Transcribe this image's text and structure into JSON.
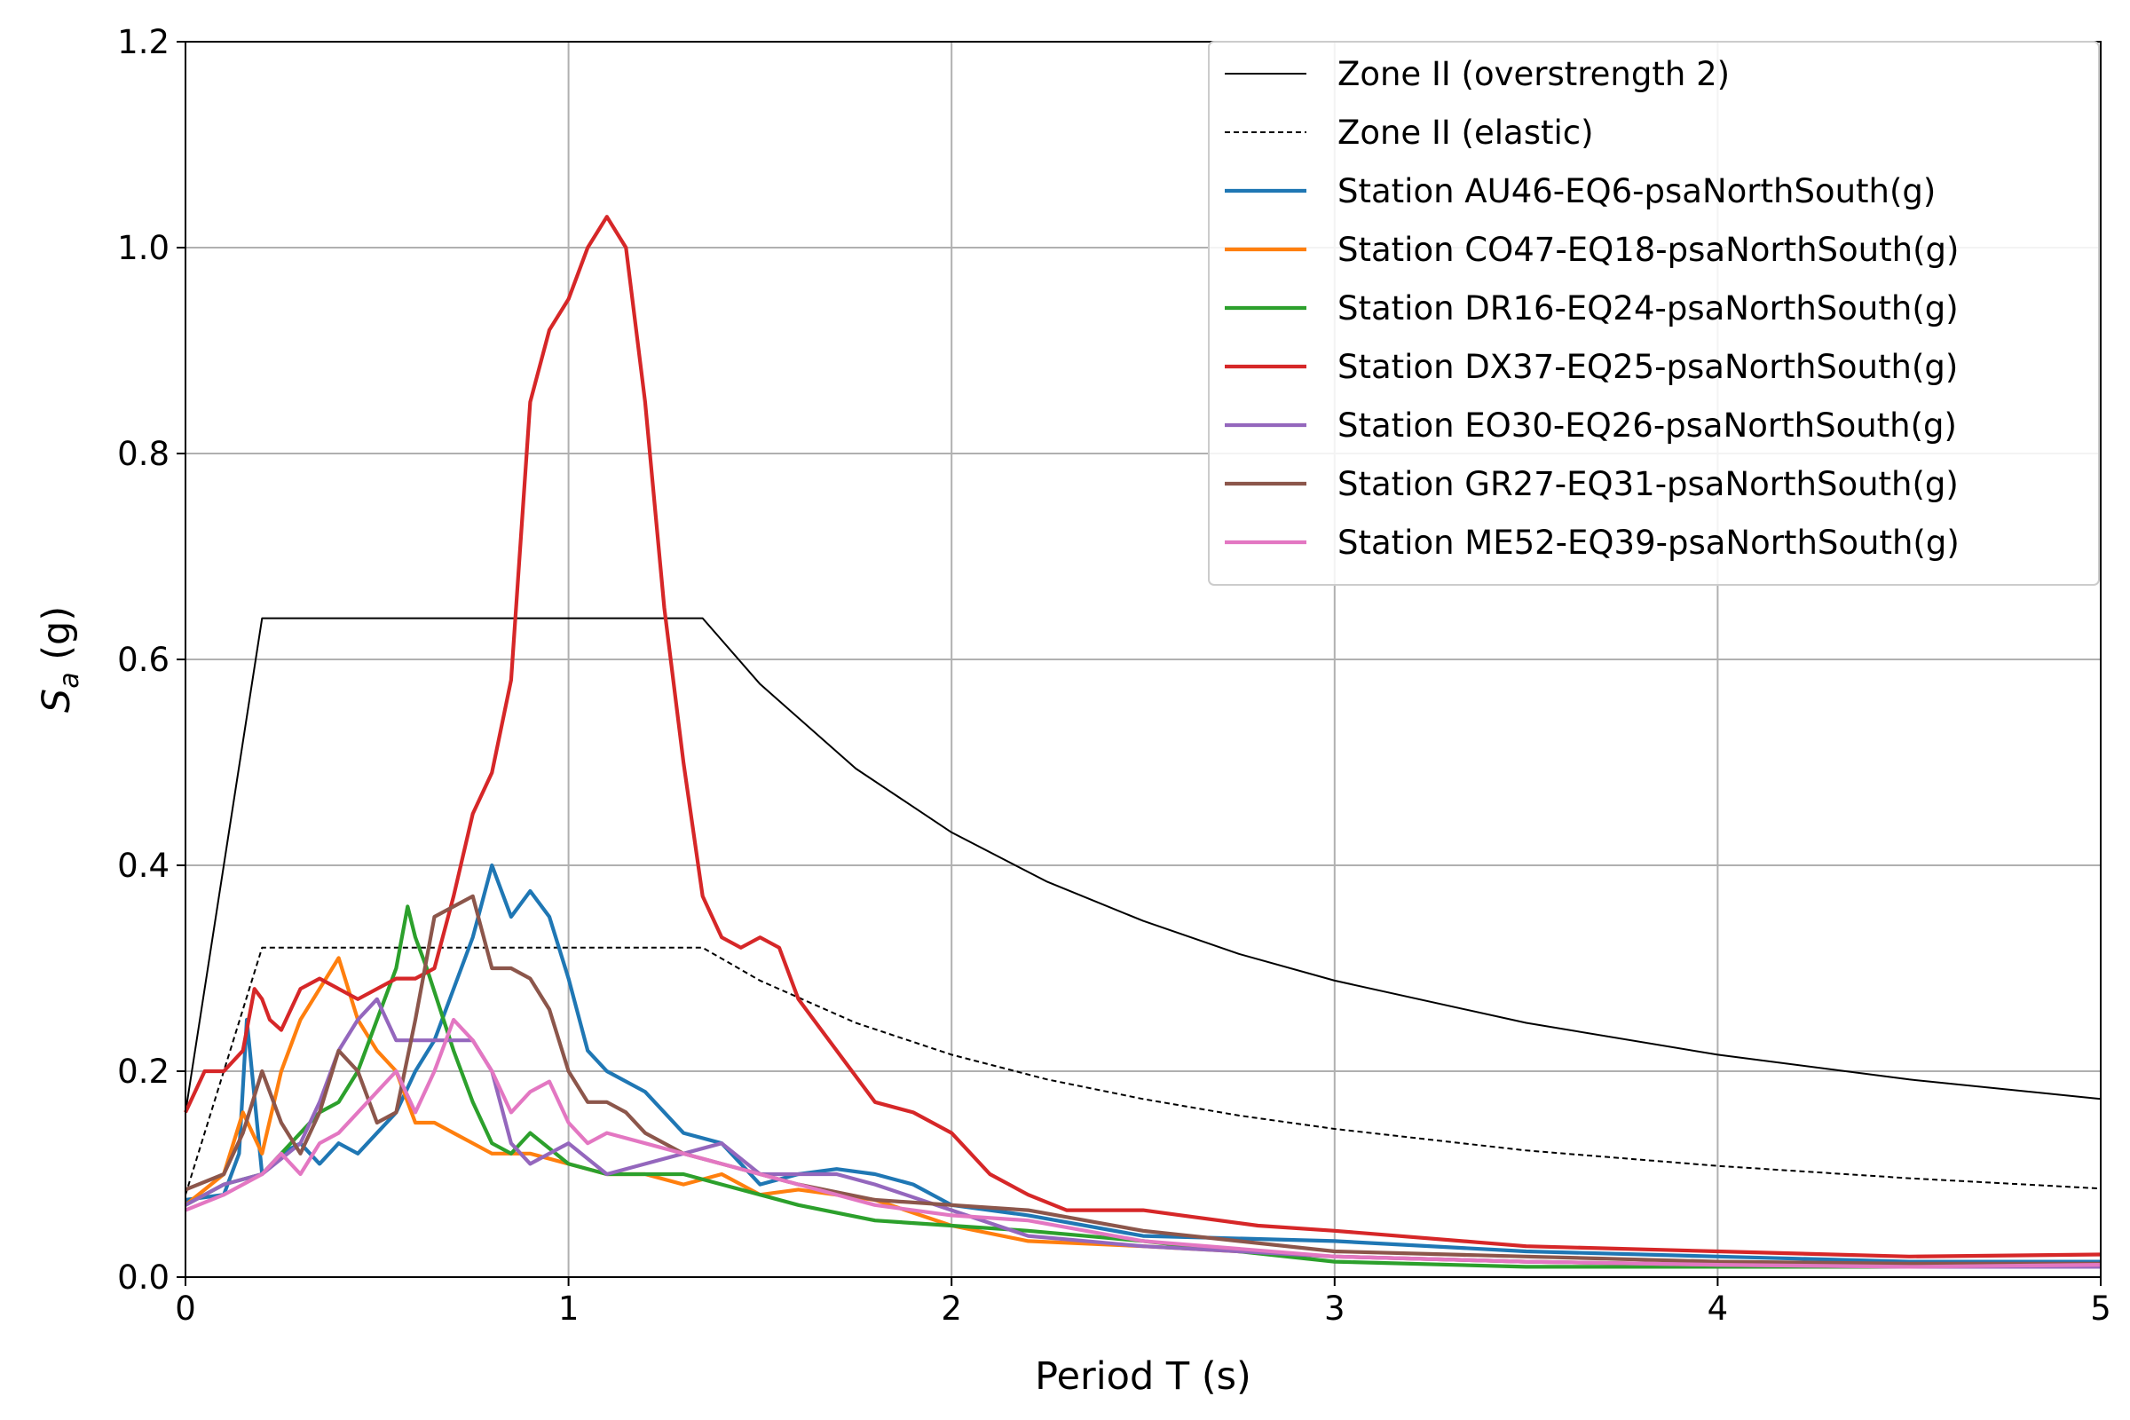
{
  "chart_data": {
    "type": "line",
    "xlabel": "Period T (s)",
    "ylabel": "S",
    "ylabel_subscript": "a",
    "ylabel_unit": " (g)",
    "xlim": [
      0,
      5
    ],
    "ylim": [
      0,
      1.2
    ],
    "x_ticks": [
      0,
      1,
      2,
      3,
      4,
      5
    ],
    "x_tick_labels": [
      "0",
      "1",
      "2",
      "3",
      "4",
      "5"
    ],
    "y_ticks": [
      0,
      0.2,
      0.4,
      0.6,
      0.8,
      1.0,
      1.2
    ],
    "y_tick_labels": [
      "0.0",
      "0.2",
      "0.4",
      "0.6",
      "0.8",
      "1.0",
      "1.2"
    ],
    "grid": true,
    "legend_position": "top-right",
    "series": [
      {
        "name": "Zone II (overstrength 2)",
        "color": "#000000",
        "style": "solid",
        "width": "thin",
        "x": [
          0,
          0.2,
          1.35,
          1.5,
          1.75,
          2.0,
          2.25,
          2.5,
          2.75,
          3.0,
          3.5,
          4.0,
          4.5,
          5.0
        ],
        "y": [
          0.16,
          0.64,
          0.64,
          0.576,
          0.494,
          0.432,
          0.384,
          0.346,
          0.314,
          0.288,
          0.247,
          0.216,
          0.192,
          0.173
        ]
      },
      {
        "name": "Zone II (elastic)",
        "color": "#000000",
        "style": "dashed",
        "width": "thin",
        "x": [
          0,
          0.2,
          1.35,
          1.5,
          1.75,
          2.0,
          2.25,
          2.5,
          2.75,
          3.0,
          3.5,
          4.0,
          4.5,
          5.0
        ],
        "y": [
          0.08,
          0.32,
          0.32,
          0.288,
          0.247,
          0.216,
          0.192,
          0.173,
          0.157,
          0.144,
          0.123,
          0.108,
          0.096,
          0.086
        ]
      },
      {
        "name": "Station AU46-EQ6-psaNorthSouth(g)",
        "color": "#1f77b4",
        "style": "solid",
        "width": "thick",
        "x": [
          0,
          0.1,
          0.14,
          0.16,
          0.2,
          0.25,
          0.3,
          0.35,
          0.4,
          0.45,
          0.5,
          0.55,
          0.6,
          0.65,
          0.7,
          0.75,
          0.8,
          0.85,
          0.9,
          0.95,
          1.0,
          1.05,
          1.1,
          1.2,
          1.3,
          1.4,
          1.5,
          1.6,
          1.7,
          1.8,
          1.9,
          2.0,
          2.2,
          2.5,
          3.0,
          3.5,
          4.0,
          4.5,
          5.0
        ],
        "y": [
          0.075,
          0.08,
          0.12,
          0.25,
          0.1,
          0.12,
          0.13,
          0.11,
          0.13,
          0.12,
          0.14,
          0.16,
          0.2,
          0.23,
          0.28,
          0.33,
          0.4,
          0.35,
          0.375,
          0.35,
          0.29,
          0.22,
          0.2,
          0.18,
          0.14,
          0.13,
          0.09,
          0.1,
          0.105,
          0.1,
          0.09,
          0.07,
          0.06,
          0.04,
          0.035,
          0.025,
          0.02,
          0.015,
          0.015
        ]
      },
      {
        "name": "Station CO47-EQ18-psaNorthSouth(g)",
        "color": "#ff7f0e",
        "style": "solid",
        "width": "thick",
        "x": [
          0,
          0.1,
          0.15,
          0.2,
          0.25,
          0.3,
          0.35,
          0.4,
          0.45,
          0.5,
          0.55,
          0.6,
          0.65,
          0.7,
          0.75,
          0.8,
          0.9,
          1.0,
          1.1,
          1.2,
          1.3,
          1.4,
          1.5,
          1.6,
          1.8,
          2.0,
          2.2,
          2.5,
          3.0,
          3.5,
          4.0,
          4.5,
          5.0
        ],
        "y": [
          0.07,
          0.1,
          0.16,
          0.12,
          0.2,
          0.25,
          0.28,
          0.31,
          0.25,
          0.22,
          0.2,
          0.15,
          0.15,
          0.14,
          0.13,
          0.12,
          0.12,
          0.11,
          0.1,
          0.1,
          0.09,
          0.1,
          0.08,
          0.085,
          0.075,
          0.05,
          0.035,
          0.03,
          0.02,
          0.015,
          0.012,
          0.01,
          0.01
        ]
      },
      {
        "name": "Station DR16-EQ24-psaNorthSouth(g)",
        "color": "#2ca02c",
        "style": "solid",
        "width": "thick",
        "x": [
          0,
          0.1,
          0.2,
          0.3,
          0.35,
          0.4,
          0.45,
          0.5,
          0.55,
          0.58,
          0.6,
          0.63,
          0.7,
          0.75,
          0.8,
          0.85,
          0.9,
          1.0,
          1.1,
          1.2,
          1.3,
          1.4,
          1.5,
          1.6,
          1.8,
          2.0,
          2.2,
          2.5,
          3.0,
          3.5,
          4.0,
          4.5,
          5.0
        ],
        "y": [
          0.07,
          0.09,
          0.1,
          0.14,
          0.16,
          0.17,
          0.2,
          0.25,
          0.3,
          0.36,
          0.33,
          0.3,
          0.22,
          0.17,
          0.13,
          0.12,
          0.14,
          0.11,
          0.1,
          0.1,
          0.1,
          0.09,
          0.08,
          0.07,
          0.055,
          0.05,
          0.045,
          0.035,
          0.015,
          0.01,
          0.01,
          0.01,
          0.01
        ]
      },
      {
        "name": "Station DX37-EQ25-psaNorthSouth(g)",
        "color": "#d62728",
        "style": "solid",
        "width": "thick",
        "x": [
          0,
          0.05,
          0.1,
          0.15,
          0.18,
          0.2,
          0.22,
          0.25,
          0.3,
          0.35,
          0.4,
          0.45,
          0.5,
          0.55,
          0.6,
          0.65,
          0.7,
          0.75,
          0.8,
          0.85,
          0.9,
          0.95,
          1.0,
          1.05,
          1.1,
          1.15,
          1.2,
          1.25,
          1.3,
          1.35,
          1.4,
          1.45,
          1.5,
          1.55,
          1.6,
          1.7,
          1.8,
          1.9,
          2.0,
          2.1,
          2.2,
          2.3,
          2.4,
          2.5,
          2.6,
          2.8,
          3.0,
          3.5,
          4.0,
          4.5,
          5.0
        ],
        "y": [
          0.16,
          0.2,
          0.2,
          0.22,
          0.28,
          0.27,
          0.25,
          0.24,
          0.28,
          0.29,
          0.28,
          0.27,
          0.28,
          0.29,
          0.29,
          0.3,
          0.37,
          0.45,
          0.49,
          0.58,
          0.85,
          0.92,
          0.95,
          1.0,
          1.03,
          1.0,
          0.85,
          0.65,
          0.5,
          0.37,
          0.33,
          0.32,
          0.33,
          0.32,
          0.27,
          0.22,
          0.17,
          0.16,
          0.14,
          0.1,
          0.08,
          0.065,
          0.065,
          0.065,
          0.06,
          0.05,
          0.045,
          0.03,
          0.025,
          0.02,
          0.022
        ]
      },
      {
        "name": "Station EO30-EQ26-psaNorthSouth(g)",
        "color": "#9467bd",
        "style": "solid",
        "width": "thick",
        "x": [
          0,
          0.1,
          0.2,
          0.3,
          0.35,
          0.4,
          0.45,
          0.5,
          0.55,
          0.6,
          0.65,
          0.7,
          0.75,
          0.8,
          0.85,
          0.9,
          1.0,
          1.1,
          1.2,
          1.3,
          1.4,
          1.5,
          1.6,
          1.7,
          1.8,
          2.0,
          2.2,
          2.5,
          3.0,
          3.5,
          4.0,
          4.5,
          5.0
        ],
        "y": [
          0.07,
          0.09,
          0.1,
          0.13,
          0.17,
          0.22,
          0.25,
          0.27,
          0.23,
          0.23,
          0.23,
          0.23,
          0.23,
          0.2,
          0.13,
          0.11,
          0.13,
          0.1,
          0.11,
          0.12,
          0.13,
          0.1,
          0.1,
          0.1,
          0.09,
          0.065,
          0.04,
          0.03,
          0.02,
          0.015,
          0.012,
          0.01,
          0.01
        ]
      },
      {
        "name": "Station GR27-EQ31-psaNorthSouth(g)",
        "color": "#8c564b",
        "style": "solid",
        "width": "thick",
        "x": [
          0,
          0.1,
          0.15,
          0.2,
          0.25,
          0.3,
          0.35,
          0.4,
          0.45,
          0.5,
          0.55,
          0.6,
          0.65,
          0.7,
          0.75,
          0.8,
          0.85,
          0.9,
          0.95,
          1.0,
          1.05,
          1.1,
          1.15,
          1.2,
          1.3,
          1.4,
          1.5,
          1.6,
          1.8,
          2.0,
          2.2,
          2.5,
          3.0,
          3.5,
          4.0,
          4.5,
          5.0
        ],
        "y": [
          0.085,
          0.1,
          0.14,
          0.2,
          0.15,
          0.12,
          0.16,
          0.22,
          0.2,
          0.15,
          0.16,
          0.25,
          0.35,
          0.36,
          0.37,
          0.3,
          0.3,
          0.29,
          0.26,
          0.2,
          0.17,
          0.17,
          0.16,
          0.14,
          0.12,
          0.11,
          0.1,
          0.09,
          0.075,
          0.07,
          0.065,
          0.045,
          0.025,
          0.02,
          0.015,
          0.013,
          0.013
        ]
      },
      {
        "name": "Station ME52-EQ39-psaNorthSouth(g)",
        "color": "#e377c2",
        "style": "solid",
        "width": "thick",
        "x": [
          0,
          0.1,
          0.2,
          0.25,
          0.3,
          0.35,
          0.4,
          0.45,
          0.5,
          0.55,
          0.6,
          0.65,
          0.7,
          0.75,
          0.8,
          0.85,
          0.9,
          0.95,
          1.0,
          1.05,
          1.1,
          1.2,
          1.3,
          1.4,
          1.5,
          1.6,
          1.8,
          2.0,
          2.2,
          2.5,
          3.0,
          3.5,
          4.0,
          4.5,
          5.0
        ],
        "y": [
          0.065,
          0.08,
          0.1,
          0.12,
          0.1,
          0.13,
          0.14,
          0.16,
          0.18,
          0.2,
          0.16,
          0.2,
          0.25,
          0.23,
          0.2,
          0.16,
          0.18,
          0.19,
          0.15,
          0.13,
          0.14,
          0.13,
          0.12,
          0.11,
          0.1,
          0.09,
          0.07,
          0.06,
          0.055,
          0.035,
          0.02,
          0.015,
          0.012,
          0.01,
          0.012
        ]
      }
    ]
  }
}
